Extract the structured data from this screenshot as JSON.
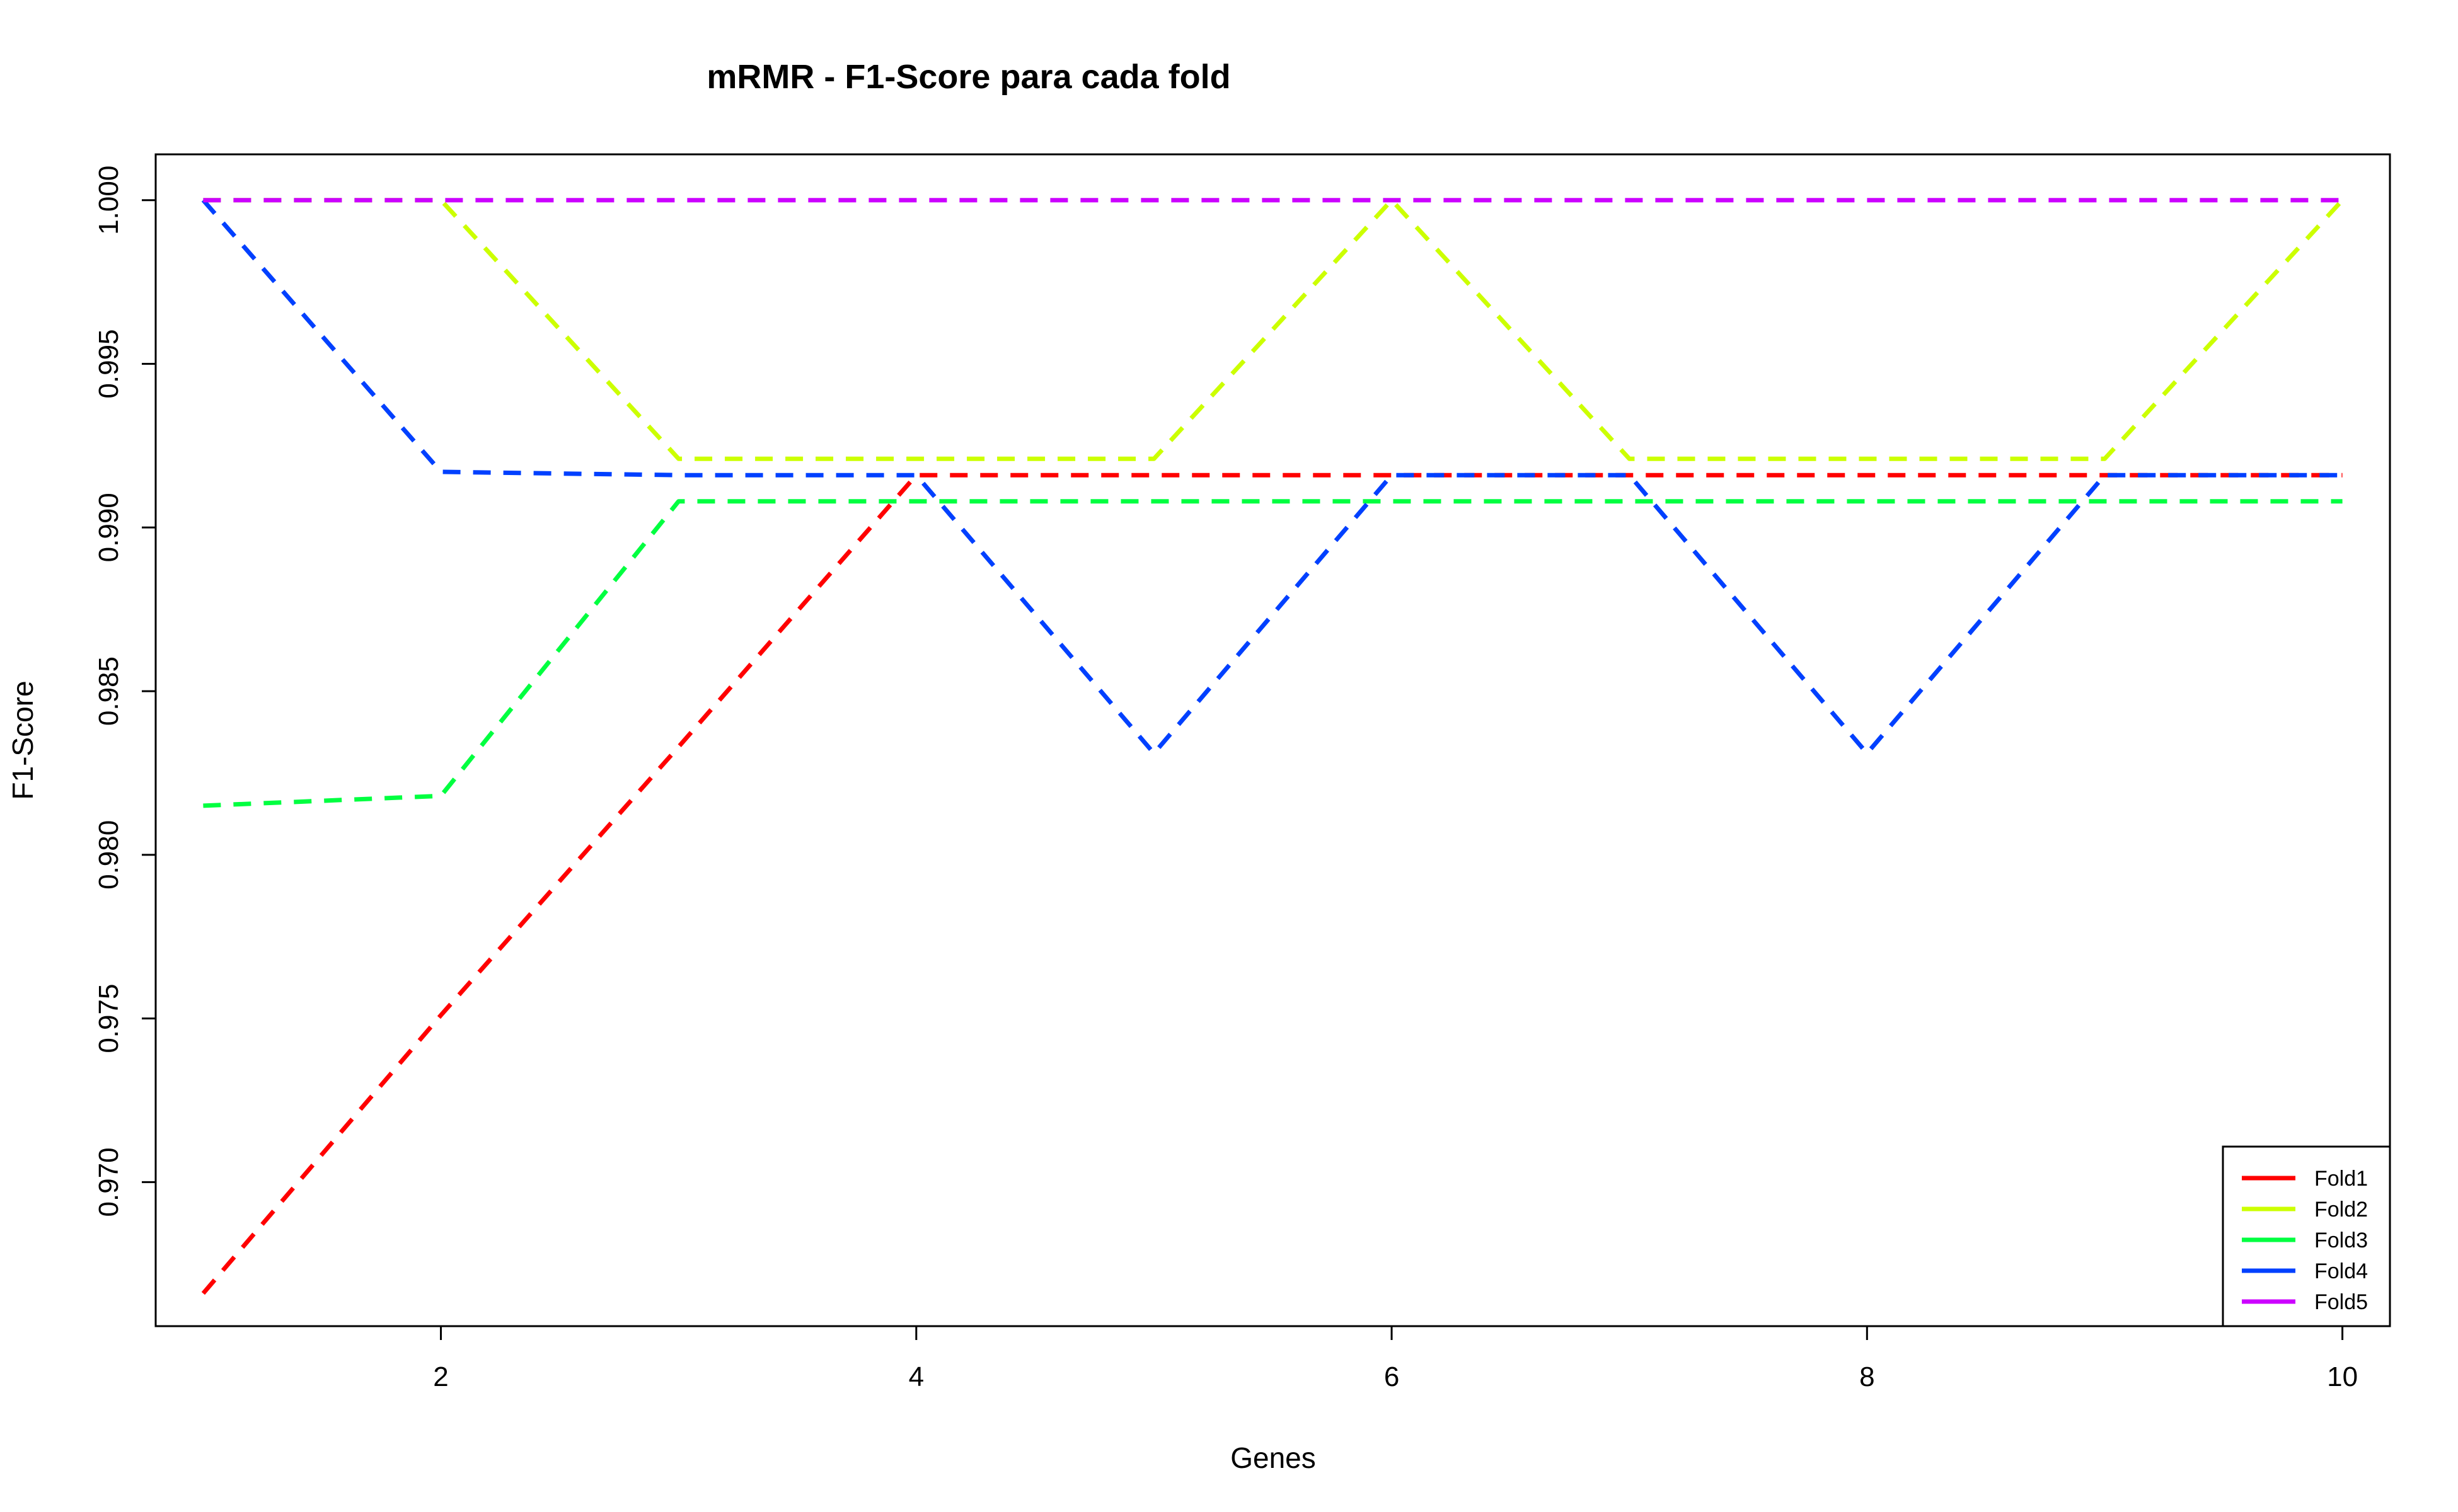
{
  "chart_data": {
    "type": "line",
    "title": "mRMR - F1-Score para cada fold",
    "xlabel": "Genes",
    "ylabel": "F1-Score",
    "xlim": [
      0.8,
      10.2
    ],
    "ylim": [
      0.9656,
      1.0014
    ],
    "x_ticks": [
      2,
      4,
      6,
      8,
      10
    ],
    "x_tick_labels": [
      "2",
      "4",
      "6",
      "8",
      "10"
    ],
    "y_ticks": [
      0.97,
      0.975,
      0.98,
      0.985,
      0.99,
      0.995,
      1.0
    ],
    "y_tick_labels": [
      "0.970",
      "0.975",
      "0.980",
      "0.985",
      "0.990",
      "0.995",
      "1.000"
    ],
    "grid": false,
    "legend_position": "bottom-right",
    "line_style": "dashed",
    "x": [
      1,
      2,
      3,
      4,
      5,
      6,
      7,
      8,
      9,
      10
    ],
    "series": [
      {
        "name": "Fold1",
        "color": "#FF0000",
        "values": [
          0.9666,
          0.9751,
          0.9833,
          0.9916,
          0.9916,
          0.9916,
          0.9916,
          0.9916,
          0.9916,
          0.9916
        ]
      },
      {
        "name": "Fold2",
        "color": "#CCFF00",
        "values": [
          1.0,
          1.0,
          0.9921,
          0.9921,
          0.9921,
          1.0,
          0.9921,
          0.9921,
          0.9921,
          1.0
        ]
      },
      {
        "name": "Fold3",
        "color": "#00FF40",
        "values": [
          0.9815,
          0.9818,
          0.9908,
          0.9908,
          0.9908,
          0.9908,
          0.9908,
          0.9908,
          0.9908,
          0.9908
        ]
      },
      {
        "name": "Fold4",
        "color": "#0040FF",
        "values": [
          1.0,
          0.9917,
          0.9916,
          0.9916,
          0.9831,
          0.9916,
          0.9916,
          0.9831,
          0.9916,
          0.9916
        ]
      },
      {
        "name": "Fold5",
        "color": "#CC00FF",
        "values": [
          1.0,
          1.0,
          1.0,
          1.0,
          1.0,
          1.0,
          1.0,
          1.0,
          1.0,
          1.0
        ]
      }
    ]
  }
}
